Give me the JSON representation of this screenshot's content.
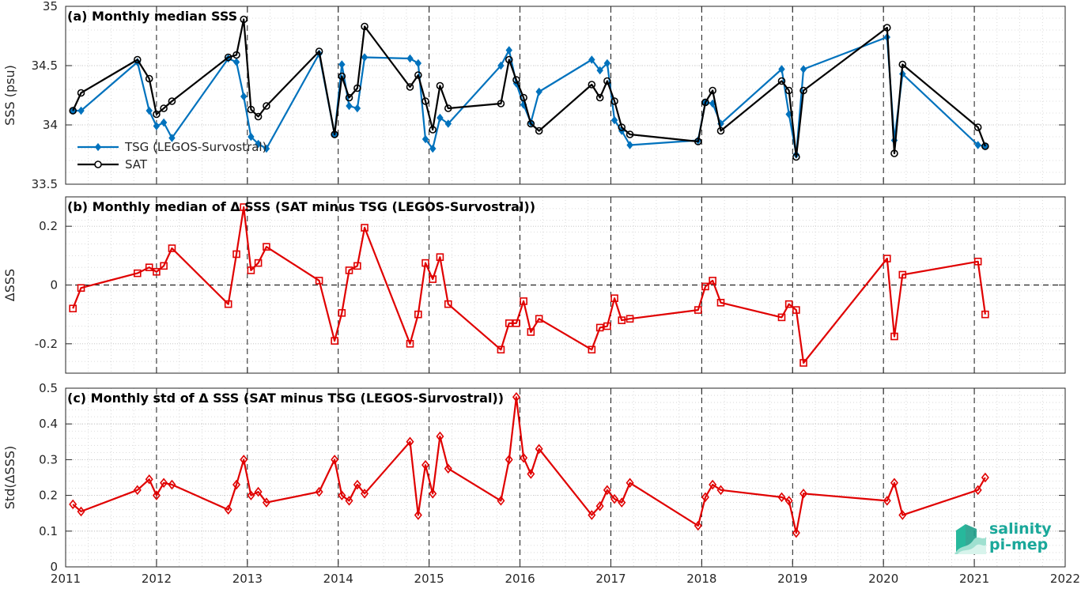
{
  "chart_data": [
    {
      "type": "line",
      "title": "(a) Monthly median SSS",
      "xlabel": "",
      "ylabel": "SSS (psu)",
      "xlim": [
        2011,
        2022
      ],
      "ylim": [
        33.5,
        35
      ],
      "yticks": [
        33.5,
        34,
        34.5,
        35
      ],
      "ytick_labels": [
        "33.5",
        "34",
        "34.5",
        "35"
      ],
      "grid": true,
      "legend": "lower-left",
      "series": [
        {
          "name": "TSG (LEGOS-Survostral)",
          "color": "#0072bd",
          "marker": "diamond",
          "x": [
            2011.08,
            2011.17,
            2011.79,
            2011.92,
            2012.0,
            2012.08,
            2012.17,
            2012.79,
            2012.88,
            2012.96,
            2013.04,
            2013.12,
            2013.21,
            2013.79,
            2013.96,
            2014.04,
            2014.12,
            2014.21,
            2014.29,
            2014.79,
            2014.88,
            2014.96,
            2015.04,
            2015.12,
            2015.21,
            2015.79,
            2015.88,
            2015.96,
            2016.04,
            2016.12,
            2016.21,
            2016.79,
            2016.88,
            2016.96,
            2017.04,
            2017.12,
            2017.21,
            2017.96,
            2018.04,
            2018.12,
            2018.21,
            2018.88,
            2018.96,
            2019.04,
            2019.12,
            2020.04,
            2020.12,
            2020.21,
            2021.04,
            2021.12
          ],
          "y": [
            34.12,
            34.12,
            34.53,
            34.12,
            33.99,
            34.02,
            33.89,
            34.56,
            34.53,
            34.24,
            33.9,
            33.84,
            33.8,
            34.6,
            33.92,
            34.51,
            34.16,
            34.14,
            34.57,
            34.56,
            34.52,
            33.88,
            33.8,
            34.06,
            34.01,
            34.5,
            34.63,
            34.35,
            34.17,
            34.02,
            34.28,
            34.55,
            34.46,
            34.52,
            34.04,
            33.95,
            33.83,
            33.87,
            34.19,
            34.18,
            34.01,
            34.47,
            34.09,
            33.75,
            34.47,
            34.74,
            33.87,
            34.43,
            33.83,
            33.82
          ]
        },
        {
          "name": "SAT",
          "color": "#000000",
          "marker": "circle",
          "x": [
            2011.08,
            2011.17,
            2011.79,
            2011.92,
            2012.0,
            2012.08,
            2012.17,
            2012.79,
            2012.88,
            2012.96,
            2013.04,
            2013.12,
            2013.21,
            2013.79,
            2013.96,
            2014.04,
            2014.12,
            2014.21,
            2014.29,
            2014.79,
            2014.88,
            2014.96,
            2015.04,
            2015.12,
            2015.21,
            2015.79,
            2015.88,
            2015.96,
            2016.04,
            2016.12,
            2016.21,
            2016.79,
            2016.88,
            2016.96,
            2017.04,
            2017.12,
            2017.21,
            2017.96,
            2018.04,
            2018.12,
            2018.21,
            2018.88,
            2018.96,
            2019.04,
            2019.12,
            2020.04,
            2020.12,
            2020.21,
            2021.04,
            2021.12
          ],
          "y": [
            34.12,
            34.27,
            34.55,
            34.39,
            34.09,
            34.14,
            34.2,
            34.57,
            34.59,
            34.89,
            34.13,
            34.07,
            34.16,
            34.62,
            33.92,
            34.41,
            34.23,
            34.31,
            34.83,
            34.32,
            34.42,
            34.2,
            33.96,
            34.33,
            34.14,
            34.18,
            34.55,
            34.38,
            34.23,
            34.01,
            33.95,
            34.34,
            34.23,
            34.37,
            34.2,
            33.98,
            33.92,
            33.86,
            34.19,
            34.29,
            33.95,
            34.37,
            34.29,
            33.73,
            34.29,
            34.82,
            33.76,
            34.51,
            33.98,
            33.82
          ]
        }
      ]
    },
    {
      "type": "line",
      "title": "(b) Monthly median of Δ SSS (SAT minus TSG (LEGOS-Survostral))",
      "xlabel": "",
      "ylabel": "ΔSSS",
      "xlim": [
        2011,
        2022
      ],
      "ylim": [
        -0.3,
        0.3
      ],
      "yticks": [
        -0.2,
        0,
        0.2
      ],
      "ytick_labels": [
        "-0.2",
        "0",
        "0.2"
      ],
      "grid": true,
      "zero_line": true,
      "series": [
        {
          "color": "#e00000",
          "marker": "square",
          "x": [
            2011.08,
            2011.17,
            2011.79,
            2011.92,
            2012.0,
            2012.08,
            2012.17,
            2012.79,
            2012.88,
            2012.96,
            2013.04,
            2013.12,
            2013.21,
            2013.79,
            2013.96,
            2014.04,
            2014.12,
            2014.21,
            2014.29,
            2014.79,
            2014.88,
            2014.96,
            2015.04,
            2015.12,
            2015.21,
            2015.79,
            2015.88,
            2015.96,
            2016.04,
            2016.12,
            2016.21,
            2016.79,
            2016.88,
            2016.96,
            2017.04,
            2017.12,
            2017.21,
            2017.96,
            2018.04,
            2018.12,
            2018.21,
            2018.88,
            2018.96,
            2019.04,
            2019.12,
            2020.04,
            2020.12,
            2020.21,
            2021.04,
            2021.12
          ],
          "y": [
            -0.08,
            -0.01,
            0.04,
            0.06,
            0.045,
            0.065,
            0.125,
            -0.065,
            0.105,
            0.265,
            0.05,
            0.075,
            0.13,
            0.015,
            -0.19,
            -0.095,
            0.05,
            0.065,
            0.195,
            -0.2,
            -0.1,
            0.075,
            0.02,
            0.095,
            -0.065,
            -0.22,
            -0.13,
            -0.13,
            -0.055,
            -0.16,
            -0.115,
            -0.22,
            -0.145,
            -0.14,
            -0.045,
            -0.12,
            -0.115,
            -0.085,
            -0.005,
            0.015,
            -0.06,
            -0.11,
            -0.065,
            -0.085,
            -0.265,
            0.09,
            -0.175,
            0.035,
            0.08,
            -0.1
          ]
        }
      ]
    },
    {
      "type": "line",
      "title": "(c) Monthly std of Δ SSS (SAT minus TSG (LEGOS-Survostral))",
      "xlabel": "",
      "ylabel": "Std(ΔSSS)",
      "xlim": [
        2011,
        2022
      ],
      "xticks": [
        2011,
        2012,
        2013,
        2014,
        2015,
        2016,
        2017,
        2018,
        2019,
        2020,
        2021,
        2022
      ],
      "xtick_labels": [
        "2011",
        "2012",
        "2013",
        "2014",
        "2015",
        "2016",
        "2017",
        "2018",
        "2019",
        "2020",
        "2021",
        "2022"
      ],
      "ylim": [
        0,
        0.5
      ],
      "yticks": [
        0,
        0.1,
        0.2,
        0.3,
        0.4,
        0.5
      ],
      "ytick_labels": [
        "0",
        "0.1",
        "0.2",
        "0.3",
        "0.4",
        "0.5"
      ],
      "grid": true,
      "series": [
        {
          "color": "#e00000",
          "marker": "diamond",
          "x": [
            2011.08,
            2011.17,
            2011.79,
            2011.92,
            2012.0,
            2012.08,
            2012.17,
            2012.79,
            2012.88,
            2012.96,
            2013.04,
            2013.12,
            2013.21,
            2013.79,
            2013.96,
            2014.04,
            2014.12,
            2014.21,
            2014.29,
            2014.79,
            2014.88,
            2014.96,
            2015.04,
            2015.12,
            2015.21,
            2015.79,
            2015.88,
            2015.96,
            2016.04,
            2016.12,
            2016.21,
            2016.79,
            2016.88,
            2016.96,
            2017.04,
            2017.12,
            2017.21,
            2017.96,
            2018.04,
            2018.12,
            2018.21,
            2018.88,
            2018.96,
            2019.04,
            2019.12,
            2020.04,
            2020.12,
            2020.21,
            2021.04,
            2021.12
          ],
          "y": [
            0.175,
            0.155,
            0.215,
            0.245,
            0.2,
            0.235,
            0.23,
            0.16,
            0.23,
            0.3,
            0.2,
            0.21,
            0.18,
            0.21,
            0.3,
            0.2,
            0.185,
            0.23,
            0.205,
            0.35,
            0.145,
            0.285,
            0.205,
            0.365,
            0.275,
            0.185,
            0.3,
            0.475,
            0.305,
            0.26,
            0.33,
            0.145,
            0.17,
            0.215,
            0.19,
            0.18,
            0.235,
            0.115,
            0.195,
            0.23,
            0.215,
            0.195,
            0.185,
            0.095,
            0.205,
            0.185,
            0.235,
            0.145,
            0.215,
            0.25
          ]
        }
      ]
    }
  ],
  "logo": {
    "line1": "salinity",
    "line2": "pi-mep"
  }
}
